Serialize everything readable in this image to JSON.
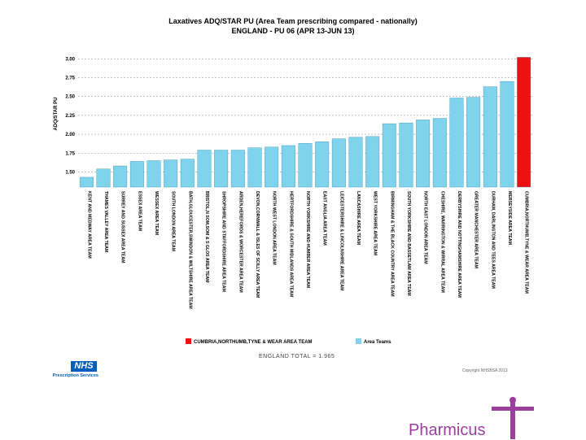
{
  "chart_data": {
    "type": "bar",
    "title": "Laxatives ADQ/STAR PU  (Area Team prescribing compared - nationally)",
    "subtitle": "ENGLAND - PU 06 (APR 13-JUN 13)",
    "ylabel": "ADQ/STAR PU",
    "xlabel": "",
    "ylim": [
      1.3,
      3.1
    ],
    "yticks": [
      "1.50",
      "1.75",
      "2.00",
      "2.25",
      "2.50",
      "2.75",
      "3.00"
    ],
    "grid": true,
    "legend_position": "bottom",
    "highlight_color": "#ee1111",
    "bar_color": "#7fd3ec",
    "categories": [
      "KENT AND MEDWAY AREA TEAM",
      "THAMES VALLEY AREA TEAM",
      "SURREY AND SUSSEX AREA TEAM",
      "ESSEX AREA TEAM",
      "WESSEX AREA TEAM",
      "SOUTH LONDON AREA TEAM",
      "BATH,GLOUCESTER,SWINDON & WILTSHIRE AREA TEAM",
      "BRISTOL,N SOM,SOM & S GLOS AREA TEAM",
      "SHROPSHIRE AND STAFFORDSHIRE AREA TEAM",
      "ARDEN,HEREFORDS & WORCESTER AREA TEAM",
      "DEVON,CORNWALL & ISLES OF SCILLY AREA TEAM",
      "NORTH WEST LONDON AREA TEAM",
      "HERTFORDSHIRE & SOUTH MIDLANDS AREA TEAM",
      "NORTH YORKSHIRE AND HUMBER AREA TEAM",
      "EAST ANGLIA AREA TEAM",
      "LEICESTERSHIRE & LINCOLNSHIRE AREA TEAM",
      "LANCASHIRE AREA TEAM",
      "WEST YORKSHIRE AREA TEAM",
      "BIRMINGHAM & THE BLACK COUNTRY AREA TEAM",
      "SOUTH YORKSHIRE AND BASSETLAW AREA TEAM",
      "NORTH EAST LONDON AREA TEAM",
      "CHESHIRE, WARRINGTON & WIRRAL AREA TEAM",
      "DERBYSHIRE AND NOTTINGHAMSHIRE AREA TEAM",
      "GREATER MANCHESTER AREA TEAM",
      "DURHAM, DARLINGTON AND TEES AREA TEAM",
      "MERSEYSIDE AREA TEAM",
      "CUMBRIA,NORTHUMB,TYNE & WEAR AREA TEAM"
    ],
    "values": [
      1.43,
      1.54,
      1.58,
      1.64,
      1.65,
      1.66,
      1.67,
      1.79,
      1.79,
      1.79,
      1.82,
      1.83,
      1.85,
      1.88,
      1.9,
      1.94,
      1.96,
      1.97,
      2.14,
      2.15,
      2.19,
      2.21,
      2.48,
      2.49,
      2.63,
      2.7,
      3.02
    ],
    "highlight_index": 26,
    "legend": [
      {
        "label": "CUMBRIA,NORTHUMB,TYNE & WEAR AREA TEAM",
        "color": "#ee1111"
      },
      {
        "label": "Area Teams",
        "color": "#7fd3ec"
      }
    ]
  },
  "footer": {
    "total_label": "ENGLAND TOTAL = 1.965",
    "copyright": "Copyright NHSBSA 2013",
    "nhs_logo": "NHS",
    "nhs_subtitle": "Prescription Services",
    "brand": "Pharmicus"
  }
}
